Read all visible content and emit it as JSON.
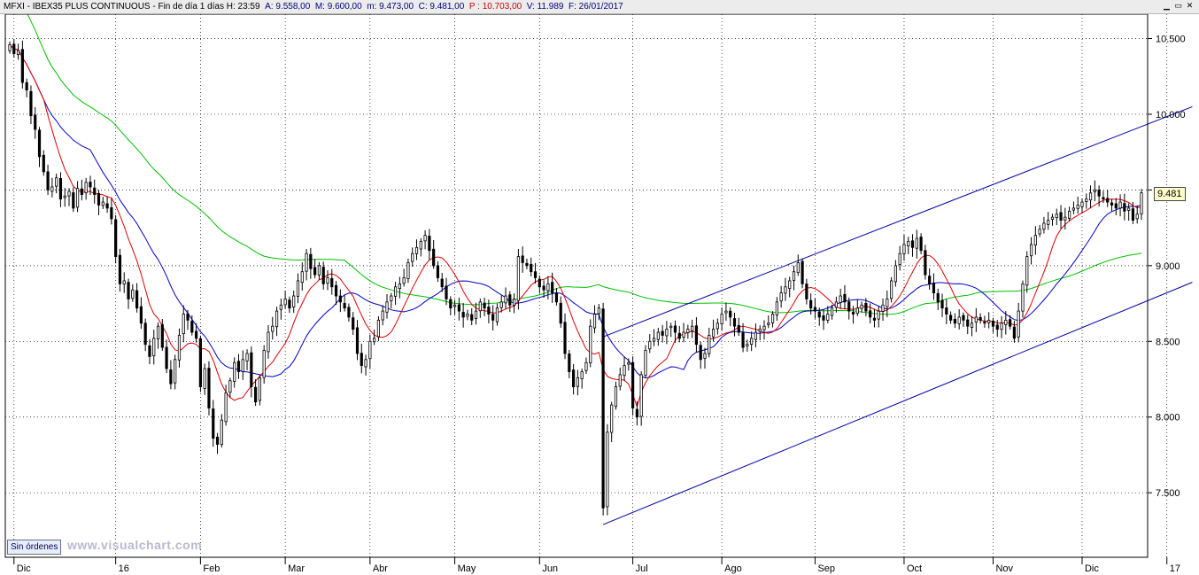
{
  "header": {
    "symbol": "MFXI - IBEX35 PLUS CONTINUOUS - Fin de día 1 días",
    "h": "H: 23:59",
    "a": "A: 9.558,00",
    "m": "M: 9.600,00",
    "mm": "m: 9.473,00",
    "c": "C: 9.481,00",
    "p": "P : 10.703,00",
    "v": "V: 11.989",
    "f": "F: 26/01/2017"
  },
  "window_controls": {
    "minimize": "▁",
    "restore": "▭",
    "close": "✕"
  },
  "status": {
    "orders_button": "Sin órdenes",
    "watermark": "www.visualchart.com"
  },
  "last_price_label": "9.481",
  "colors": {
    "sma_fast": "#e00000",
    "sma_mid": "#0000cc",
    "sma_slow": "#00c000",
    "channel": "#0000aa",
    "candle": "#000000"
  },
  "chart_data": {
    "type": "candlestick",
    "ylim": [
      7150,
      10620
    ],
    "y_ticks": [
      7500,
      8000,
      8500,
      9000,
      9500,
      10000,
      10500
    ],
    "y_tick_labels": [
      "7.500",
      "8.000",
      "8.500",
      "9.000",
      "9.500",
      "10.000",
      "10.500"
    ],
    "x_labels": [
      {
        "label": "Dic",
        "idx": 1
      },
      {
        "label": "16",
        "idx": 25
      },
      {
        "label": "Feb",
        "idx": 45
      },
      {
        "label": "Mar",
        "idx": 65
      },
      {
        "label": "Abr",
        "idx": 85
      },
      {
        "label": "May",
        "idx": 105
      },
      {
        "label": "Jun",
        "idx": 125
      },
      {
        "label": "Jul",
        "idx": 147
      },
      {
        "label": "Ago",
        "idx": 168
      },
      {
        "label": "Sep",
        "idx": 190
      },
      {
        "label": "Oct",
        "idx": 211
      },
      {
        "label": "Nov",
        "idx": 232
      },
      {
        "label": "Dic",
        "idx": 253
      },
      {
        "label": "17",
        "idx": 273
      }
    ],
    "close_series": [
      10460,
      10400,
      10420,
      10210,
      10160,
      9990,
      9900,
      9720,
      9620,
      9500,
      9520,
      9580,
      9440,
      9460,
      9490,
      9380,
      9510,
      9470,
      9550,
      9520,
      9470,
      9400,
      9420,
      9380,
      9310,
      9060,
      8880,
      8900,
      8780,
      8840,
      8720,
      8620,
      8480,
      8400,
      8520,
      8600,
      8460,
      8320,
      8220,
      8380,
      8540,
      8680,
      8640,
      8560,
      8520,
      8200,
      8320,
      8060,
      7860,
      7820,
      7980,
      8160,
      8240,
      8360,
      8300,
      8380,
      8420,
      8200,
      8100,
      8260,
      8440,
      8560,
      8600,
      8700,
      8740,
      8780,
      8720,
      8800,
      8900,
      8960,
      9080,
      8980,
      8940,
      9000,
      8880,
      8920,
      8860,
      8800,
      8760,
      8720,
      8660,
      8580,
      8420,
      8340,
      8380,
      8500,
      8520,
      8640,
      8700,
      8760,
      8800,
      8860,
      8880,
      8920,
      9020,
      9080,
      9120,
      9160,
      9200,
      9100,
      9000,
      8920,
      8860,
      8780,
      8720,
      8740,
      8700,
      8660,
      8680,
      8640,
      8700,
      8760,
      8720,
      8680,
      8640,
      8720,
      8760,
      8800,
      8740,
      8780,
      9060,
      9020,
      9000,
      8960,
      8920,
      8860,
      8840,
      8880,
      8820,
      8760,
      8620,
      8420,
      8300,
      8200,
      8260,
      8300,
      8360,
      8600,
      8680,
      8720,
      7400,
      7900,
      8080,
      8200,
      8280,
      8340,
      8360,
      8060,
      8000,
      8280,
      8440,
      8500,
      8520,
      8560,
      8540,
      8580,
      8600,
      8560,
      8520,
      8560,
      8580,
      8600,
      8480,
      8380,
      8420,
      8540,
      8580,
      8620,
      8680,
      8700,
      8660,
      8600,
      8560,
      8460,
      8480,
      8520,
      8560,
      8580,
      8600,
      8620,
      8680,
      8760,
      8820,
      8860,
      8900,
      8960,
      9020,
      8880,
      8780,
      8720,
      8700,
      8660,
      8640,
      8680,
      8720,
      8760,
      8800,
      8760,
      8700,
      8680,
      8720,
      8740,
      8700,
      8660,
      8640,
      8700,
      8740,
      8780,
      8900,
      9000,
      9080,
      9140,
      9160,
      9120,
      9180,
      9100,
      8940,
      8880,
      8820,
      8760,
      8720,
      8680,
      8640,
      8620,
      8660,
      8640,
      8600,
      8620,
      8660,
      8640,
      8620,
      8640,
      8600,
      8580,
      8620,
      8640,
      8600,
      8520,
      8700,
      8880,
      9060,
      9140,
      9200,
      9240,
      9280,
      9300,
      9320,
      9340,
      9300,
      9320,
      9360,
      9380,
      9400,
      9420,
      9440,
      9480,
      9500,
      9460,
      9440,
      9420,
      9400,
      9380,
      9420,
      9360,
      9380,
      9300,
      9340,
      9481
    ],
    "channel_lines": [
      {
        "name": "upper",
        "from": {
          "idx": 140,
          "value": 8530
        },
        "to": {
          "idx": 279,
          "value": 10050
        }
      },
      {
        "name": "lower",
        "from": {
          "idx": 140,
          "value": 7290
        },
        "to": {
          "idx": 279,
          "value": 8890
        }
      }
    ]
  }
}
